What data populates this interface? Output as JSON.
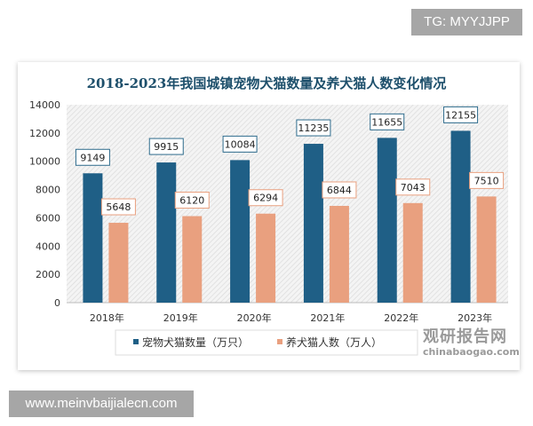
{
  "watermark_top": "TG: MYYJJPP",
  "watermark_bottom": "www.meinvbaijialecn.com",
  "logo": {
    "name": "观研报告网",
    "url_text": "chinabaogao.com"
  },
  "chart_data": {
    "type": "bar",
    "title": "2018-2023年我国城镇宠物犬猫数量及养犬猫人数变化情况",
    "categories": [
      "2018年",
      "2019年",
      "2020年",
      "2021年",
      "2022年",
      "2023年"
    ],
    "series": [
      {
        "name": "宠物犬猫数量（万只）",
        "color": "#1f5f86",
        "values": [
          9149,
          9915,
          10084,
          11235,
          11655,
          12155
        ]
      },
      {
        "name": "养犬猫人数（万人）",
        "color": "#e9a07f",
        "values": [
          5648,
          6120,
          6294,
          6844,
          7043,
          7510
        ]
      }
    ],
    "ylim": [
      0,
      14000
    ],
    "yticks": [
      0,
      2000,
      4000,
      6000,
      8000,
      10000,
      12000,
      14000
    ],
    "grid": false,
    "legend": "bottom",
    "data_labels": true
  }
}
